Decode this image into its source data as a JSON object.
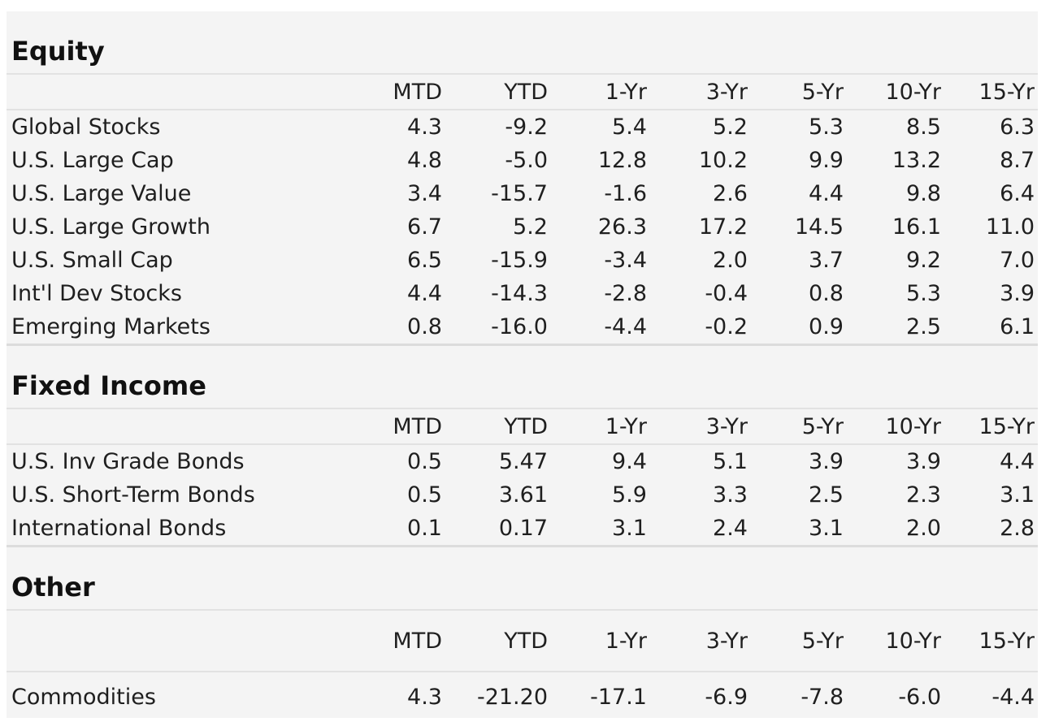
{
  "columns": [
    "MTD",
    "YTD",
    "1-Yr",
    "3-Yr",
    "5-Yr",
    "10-Yr",
    "15-Yr"
  ],
  "sections": [
    {
      "title": "Equity",
      "rows": [
        {
          "name": "Global Stocks",
          "values": [
            "4.3",
            "-9.2",
            "5.4",
            "5.2",
            "5.3",
            "8.5",
            "6.3"
          ]
        },
        {
          "name": "U.S. Large Cap",
          "values": [
            "4.8",
            "-5.0",
            "12.8",
            "10.2",
            "9.9",
            "13.2",
            "8.7"
          ]
        },
        {
          "name": "U.S. Large Value",
          "values": [
            "3.4",
            "-15.7",
            "-1.6",
            "2.6",
            "4.4",
            "9.8",
            "6.4"
          ]
        },
        {
          "name": "U.S. Large Growth",
          "values": [
            "6.7",
            "5.2",
            "26.3",
            "17.2",
            "14.5",
            "16.1",
            "11.0"
          ]
        },
        {
          "name": "U.S. Small Cap",
          "values": [
            "6.5",
            "-15.9",
            "-3.4",
            "2.0",
            "3.7",
            "9.2",
            "7.0"
          ]
        },
        {
          "name": "Int'l Dev Stocks",
          "values": [
            "4.4",
            "-14.3",
            "-2.8",
            "-0.4",
            "0.8",
            "5.3",
            "3.9"
          ]
        },
        {
          "name": "Emerging Markets",
          "values": [
            "0.8",
            "-16.0",
            "-4.4",
            "-0.2",
            "0.9",
            "2.5",
            "6.1"
          ]
        }
      ]
    },
    {
      "title": "Fixed Income",
      "rows": [
        {
          "name": "U.S. Inv Grade Bonds",
          "values": [
            "0.5",
            "5.47",
            "9.4",
            "5.1",
            "3.9",
            "3.9",
            "4.4"
          ]
        },
        {
          "name": "U.S. Short-Term Bonds",
          "values": [
            "0.5",
            "3.61",
            "5.9",
            "3.3",
            "2.5",
            "2.3",
            "3.1"
          ]
        },
        {
          "name": "International Bonds",
          "values": [
            "0.1",
            "0.17",
            "3.1",
            "2.4",
            "3.1",
            "2.0",
            "2.8"
          ]
        }
      ]
    },
    {
      "title": "Other",
      "rows": [
        {
          "name": "Commodities",
          "values": [
            "4.3",
            "-21.20",
            "-17.1",
            "-6.9",
            "-7.8",
            "-6.0",
            "-4.4"
          ]
        }
      ]
    }
  ]
}
